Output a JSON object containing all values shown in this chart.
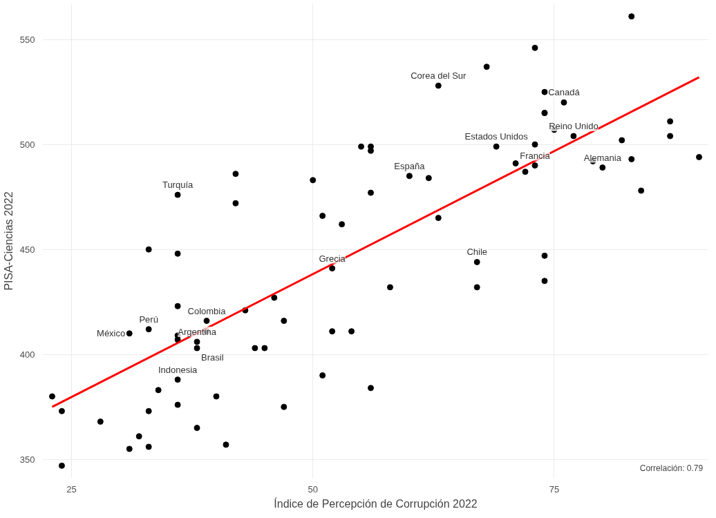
{
  "chart_data": {
    "type": "scatter",
    "xlabel": "Índice de Percepción de Corrupción 2022",
    "ylabel": "PISA-Ciencias 2022",
    "xlim": [
      22,
      91
    ],
    "ylim": [
      341,
      567
    ],
    "xticks": [
      25,
      50,
      75
    ],
    "yticks": [
      350,
      400,
      450,
      500,
      550
    ],
    "grid": true,
    "series": [
      {
        "marker": "circle",
        "color": "#000000",
        "x": [
          23,
          24,
          24,
          28,
          31,
          31,
          32,
          33,
          33,
          33,
          33,
          34,
          36,
          36,
          36,
          36,
          36,
          36,
          36,
          38,
          38,
          38,
          39,
          39,
          40,
          41,
          42,
          42,
          43,
          44,
          45,
          46,
          47,
          47,
          50,
          51,
          51,
          52,
          52,
          53,
          54,
          55,
          56,
          56,
          56,
          56,
          58,
          60,
          62,
          63,
          63,
          67,
          67,
          68,
          69,
          71,
          72,
          73,
          73,
          73,
          74,
          74,
          74,
          74,
          74,
          75,
          76,
          77,
          79,
          80,
          82,
          83,
          83,
          84,
          87,
          87,
          90
        ],
        "values": [
          380,
          373,
          347,
          368,
          410,
          355,
          361,
          450,
          412,
          373,
          356,
          383,
          476,
          448,
          423,
          409,
          407,
          388,
          376,
          406,
          403,
          365,
          416,
          411,
          380,
          357,
          486,
          472,
          421,
          403,
          403,
          427,
          416,
          375,
          483,
          466,
          390,
          441,
          411,
          462,
          411,
          499,
          499,
          497,
          477,
          384,
          432,
          485,
          484,
          528,
          465,
          444,
          432,
          537,
          499,
          491,
          487,
          546,
          500,
          490,
          525,
          515,
          447,
          435,
          515,
          507,
          520,
          504,
          492,
          489,
          502,
          561,
          493,
          478,
          511,
          504,
          494
        ]
      },
      {
        "type": "line",
        "color": "#ff0000",
        "x": [
          23,
          90
        ],
        "values": [
          375,
          532
        ]
      }
    ],
    "annotations": [
      {
        "text": "Corea del Sur",
        "x": 63,
        "y": 528
      },
      {
        "text": "Canadá",
        "x": 76,
        "y": 520
      },
      {
        "text": "Reino Unido",
        "x": 77,
        "y": 504
      },
      {
        "text": "Estados Unidos",
        "x": 69,
        "y": 499
      },
      {
        "text": "Francia",
        "x": 73,
        "y": 490
      },
      {
        "text": "España",
        "x": 60,
        "y": 485
      },
      {
        "text": "Alemania",
        "x": 80,
        "y": 489
      },
      {
        "text": "Turquía",
        "x": 36,
        "y": 476
      },
      {
        "text": "Grecia",
        "x": 52,
        "y": 441
      },
      {
        "text": "Chile",
        "x": 67,
        "y": 444
      },
      {
        "text": "México",
        "x": 31,
        "y": 410
      },
      {
        "text": "Perú",
        "x": 33,
        "y": 412
      },
      {
        "text": "Colombia",
        "x": 39,
        "y": 416
      },
      {
        "text": "Argentina",
        "x": 38,
        "y": 406
      },
      {
        "text": "Brasil",
        "x": 38,
        "y": 403
      },
      {
        "text": "Indonesia",
        "x": 36,
        "y": 388
      },
      "Correlación:  0.79"
    ]
  }
}
